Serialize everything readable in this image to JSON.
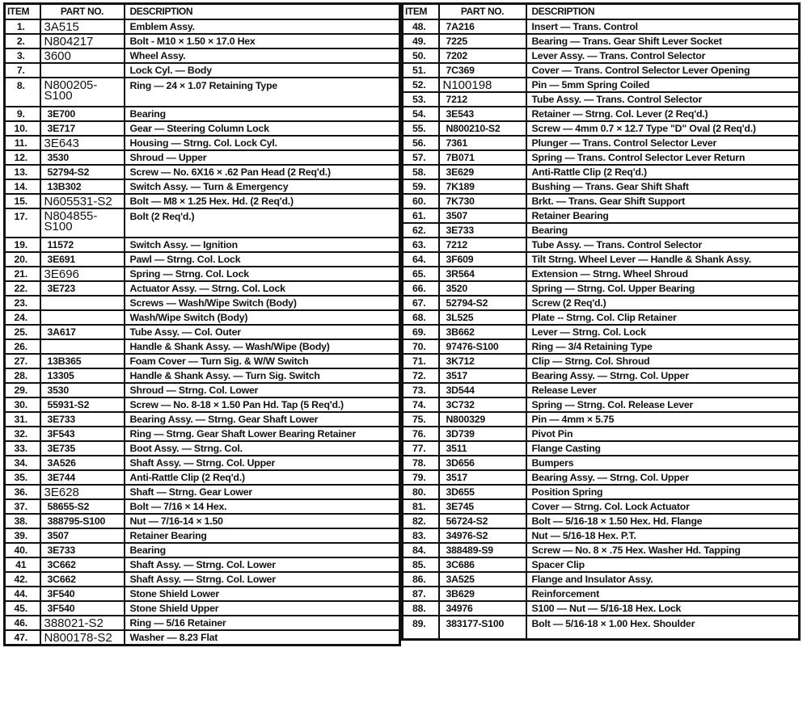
{
  "headers": {
    "item": "ITEM",
    "part": "PART NO.",
    "description": "DESCRIPTION"
  },
  "left_rows": [
    {
      "item": "1.",
      "part": "3A515",
      "desc": "Emblem Assy.",
      "typed": true
    },
    {
      "item": "2.",
      "part": "N804217",
      "desc": "Bolt - M10 × 1.50 × 17.0 Hex",
      "typed": true
    },
    {
      "item": "3.",
      "part": "3600",
      "desc": "Wheel Assy.",
      "typed": true
    },
    {
      "item": "7.",
      "part": "",
      "desc": "Lock Cyl. — Body"
    },
    {
      "item": "8.",
      "part": "N800205-\nS100",
      "desc": "Ring — 24 × 1.07 Retaining Type",
      "typed": true,
      "double": true
    },
    {
      "item": "9.",
      "part": "3E700",
      "desc": "Bearing"
    },
    {
      "item": "10.",
      "part": "3E717",
      "desc": "Gear — Steering Column Lock"
    },
    {
      "item": "11.",
      "part": "3E643",
      "desc": "Housing — Strng. Col. Lock Cyl.",
      "typed": true
    },
    {
      "item": "12.",
      "part": "3530",
      "desc": "Shroud — Upper"
    },
    {
      "item": "13.",
      "part": "52794-S2",
      "desc": "Screw — No. 6X16 × .62 Pan Head (2 Req'd.)"
    },
    {
      "item": "14.",
      "part": "13B302",
      "desc": "Switch Assy. — Turn & Emergency"
    },
    {
      "item": "15.",
      "part": "N605531-S2",
      "desc": "Bolt — M8 × 1.25 Hex. Hd. (2 Req'd.)",
      "typed": true
    },
    {
      "item": "17.",
      "part": "N804855-\nS100",
      "desc": "Bolt (2 Req'd.)",
      "typed": true,
      "double": true
    },
    {
      "item": "19.",
      "part": "11572",
      "desc": "Switch Assy. — Ignition"
    },
    {
      "item": "20.",
      "part": "3E691",
      "desc": "Pawl — Strng. Col. Lock"
    },
    {
      "item": "21.",
      "part": "3E696",
      "desc": "Spring — Strng. Col. Lock",
      "typed": true
    },
    {
      "item": "22.",
      "part": "3E723",
      "desc": "Actuator Assy. — Strng. Col. Lock"
    },
    {
      "item": "23.",
      "part": "",
      "desc": "Screws — Wash/Wipe Switch (Body)"
    },
    {
      "item": "24.",
      "part": "",
      "desc": "Wash/Wipe Switch (Body)"
    },
    {
      "item": "25.",
      "part": "3A617",
      "desc": "Tube Assy. — Col. Outer"
    },
    {
      "item": "26.",
      "part": "",
      "desc": "Handle & Shank Assy. — Wash/Wipe (Body)"
    },
    {
      "item": "27.",
      "part": "13B365",
      "desc": "Foam Cover — Turn Sig. & W/W Switch"
    },
    {
      "item": "28.",
      "part": "13305",
      "desc": "Handle & Shank Assy. — Turn Sig. Switch"
    },
    {
      "item": "29.",
      "part": "3530",
      "desc": "Shroud — Strng. Col. Lower"
    },
    {
      "item": "30.",
      "part": "55931-S2",
      "desc": "Screw — No. 8-18 × 1.50 Pan Hd. Tap (5 Req'd.)"
    },
    {
      "item": "31.",
      "part": "3E733",
      "desc": "Bearing Assy. — Strng. Gear Shaft Lower"
    },
    {
      "item": "32.",
      "part": "3F543",
      "desc": "Ring — Strng. Gear Shaft Lower Bearing Retainer"
    },
    {
      "item": "33.",
      "part": "3E735",
      "desc": "Boot Assy. — Strng. Col."
    },
    {
      "item": "34.",
      "part": "3A526",
      "desc": "Shaft Assy. — Strng. Col. Upper"
    },
    {
      "item": "35.",
      "part": "3E744",
      "desc": "Anti-Rattle Clip (2 Req'd.)"
    },
    {
      "item": "36.",
      "part": "3E628",
      "desc": "Shaft — Strng. Gear Lower",
      "typed": true
    },
    {
      "item": "37.",
      "part": "58655-S2",
      "desc": "Bolt — 7/16 × 14 Hex."
    },
    {
      "item": "38.",
      "part": "388795-S100",
      "desc": "Nut — 7/16-14 × 1.50"
    },
    {
      "item": "39.",
      "part": "3507",
      "desc": "Retainer Bearing"
    },
    {
      "item": "40.",
      "part": "3E733",
      "desc": "Bearing"
    },
    {
      "item": "41",
      "part": "3C662",
      "desc": "Shaft Assy. — Strng. Col. Lower"
    },
    {
      "item": "42.",
      "part": "3C662",
      "desc": "Shaft Assy. — Strng. Col. Lower"
    },
    {
      "item": "44.",
      "part": "3F540",
      "desc": "Stone Shield Lower"
    },
    {
      "item": "45.",
      "part": "3F540",
      "desc": "Stone Shield Upper"
    },
    {
      "item": "46.",
      "part": "388021-S2",
      "desc": "Ring — 5/16 Retainer",
      "typed": true
    },
    {
      "item": "47.",
      "part": "N800178-S2",
      "desc": "Washer — 8.23 Flat",
      "typed": true
    }
  ],
  "right_rows": [
    {
      "item": "48.",
      "part": "7A216",
      "desc": "Insert — Trans. Control"
    },
    {
      "item": "49.",
      "part": "7225",
      "desc": "Bearing — Trans. Gear Shift Lever Socket"
    },
    {
      "item": "50.",
      "part": "7202",
      "desc": "Lever Assy. — Trans. Control Selector"
    },
    {
      "item": "51.",
      "part": "7C369",
      "desc": "Cover — Trans. Control Selector Lever Opening"
    },
    {
      "item": "52.",
      "part": "N100198",
      "desc": "Pin — 5mm Spring Coiled",
      "typed": true
    },
    {
      "item": "53.",
      "part": "7212",
      "desc": "Tube Assy. — Trans. Control Selector"
    },
    {
      "item": "54.",
      "part": "3E543",
      "desc": "Retainer — Strng. Col. Lever (2 Req'd.)"
    },
    {
      "item": "55.",
      "part": "N800210-S2",
      "desc": "Screw — 4mm 0.7 × 12.7 Type \"D\" Oval (2 Req'd.)"
    },
    {
      "item": "56.",
      "part": "7361",
      "desc": "Plunger — Trans. Control Selector Lever"
    },
    {
      "item": "57.",
      "part": "7B071",
      "desc": "Spring — Trans. Control Selector Lever Return"
    },
    {
      "item": "58.",
      "part": "3E629",
      "desc": "Anti-Rattle Clip (2 Req'd.)"
    },
    {
      "item": "59.",
      "part": "7K189",
      "desc": "Bushing — Trans. Gear Shift Shaft"
    },
    {
      "item": "60.",
      "part": "7K730",
      "desc": "Brkt. — Trans. Gear Shift Support"
    },
    {
      "item": "61.",
      "part": "3507",
      "desc": "Retainer Bearing"
    },
    {
      "item": "62.",
      "part": "3E733",
      "desc": "Bearing"
    },
    {
      "item": "63.",
      "part": "7212",
      "desc": "Tube Assy. — Trans. Control Selector"
    },
    {
      "item": "64.",
      "part": "3F609",
      "desc": "Tilt Strng. Wheel Lever — Handle & Shank Assy."
    },
    {
      "item": "65.",
      "part": "3R564",
      "desc": "Extension — Strng. Wheel Shroud"
    },
    {
      "item": "66.",
      "part": "3520",
      "desc": "Spring — Strng. Col. Upper Bearing"
    },
    {
      "item": "67.",
      "part": "52794-S2",
      "desc": "Screw (2 Req'd.)"
    },
    {
      "item": "68.",
      "part": "3L525",
      "desc": "Plate -- Strng. Col. Clip Retainer"
    },
    {
      "item": "69.",
      "part": "3B662",
      "desc": "Lever — Strng. Col. Lock"
    },
    {
      "item": "70.",
      "part": "97476-S100",
      "desc": "Ring — 3/4 Retaining Type"
    },
    {
      "item": "71.",
      "part": "3K712",
      "desc": "Clip — Strng. Col. Shroud"
    },
    {
      "item": "72.",
      "part": "3517",
      "desc": "Bearing Assy. — Strng. Col. Upper"
    },
    {
      "item": "73.",
      "part": "3D544",
      "desc": "Release Lever"
    },
    {
      "item": "74.",
      "part": "3C732",
      "desc": "Spring — Strng. Col. Release Lever"
    },
    {
      "item": "75.",
      "part": "N800329",
      "desc": "Pin — 4mm × 5.75"
    },
    {
      "item": "76.",
      "part": "3D739",
      "desc": "Pivot Pin"
    },
    {
      "item": "77.",
      "part": "3511",
      "desc": "Flange Casting"
    },
    {
      "item": "78.",
      "part": "3D656",
      "desc": "Bumpers"
    },
    {
      "item": "79.",
      "part": "3517",
      "desc": "Bearing Assy. — Strng. Col. Upper"
    },
    {
      "item": "80.",
      "part": "3D655",
      "desc": "Position Spring"
    },
    {
      "item": "81.",
      "part": "3E745",
      "desc": "Cover — Strng. Col. Lock Actuator"
    },
    {
      "item": "82.",
      "part": "56724-S2",
      "desc": "Bolt — 5/16-18 × 1.50 Hex. Hd. Flange"
    },
    {
      "item": "83.",
      "part": "34976-S2",
      "desc": "Nut — 5/16-18 Hex. P.T."
    },
    {
      "item": "84.",
      "part": "388489-S9",
      "desc": "Screw — No. 8 × .75 Hex. Washer Hd. Tapping"
    },
    {
      "item": "85.",
      "part": "3C686",
      "desc": "Spacer Clip"
    },
    {
      "item": "86.",
      "part": "3A525",
      "desc": "Flange and Insulator Assy."
    },
    {
      "item": "87.",
      "part": "3B629",
      "desc": "Reinforcement"
    },
    {
      "item": "88.",
      "part": "34976",
      "desc": "S100 — Nut — 5/16-18 Hex. Lock"
    },
    {
      "item": "89.",
      "part": "383177-S100",
      "desc": "Bolt — 5/16-18 × 1.00 Hex. Shoulder",
      "tall": true
    }
  ]
}
